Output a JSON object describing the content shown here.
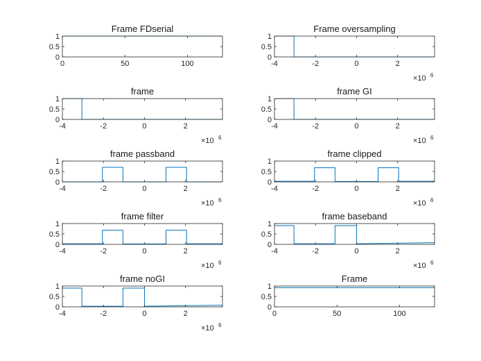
{
  "chart_data": [
    {
      "type": "line",
      "title": "Frame FDserial",
      "xlim": [
        0,
        128
      ],
      "ylim": [
        0,
        1
      ],
      "xticks": [
        0,
        50,
        100
      ],
      "xtick_labels": [
        "0",
        "50",
        "100"
      ],
      "yticks": [
        0,
        0.5,
        1
      ],
      "ytick_labels": [
        "0",
        "0.5",
        "1"
      ],
      "x_multiplier": "",
      "series": [
        {
          "color": "#0072bd",
          "x": [
            0,
            128
          ],
          "y": [
            1,
            1
          ]
        }
      ]
    },
    {
      "type": "line",
      "title": "Frame oversampling",
      "xlim": [
        -4000000,
        3800000
      ],
      "ylim": [
        0,
        1
      ],
      "xticks": [
        -4000000,
        -2000000,
        0,
        2000000
      ],
      "xtick_labels": [
        "-4",
        "-2",
        "0",
        "2"
      ],
      "yticks": [
        0,
        0.5,
        1
      ],
      "ytick_labels": [
        "0",
        "0.5",
        "1"
      ],
      "x_multiplier": "×10",
      "x_multiplier_exp": "6",
      "series": [
        {
          "color": "#0072bd",
          "x": [
            -4000000,
            -3050000,
            -3050000,
            3800000
          ],
          "y": [
            1,
            1,
            0,
            0
          ]
        }
      ]
    },
    {
      "type": "line",
      "title": "frame",
      "xlim": [
        -4000000,
        3800000
      ],
      "ylim": [
        0,
        1
      ],
      "xticks": [
        -4000000,
        -2000000,
        0,
        2000000
      ],
      "xtick_labels": [
        "-4",
        "-2",
        "0",
        "2"
      ],
      "yticks": [
        0,
        0.5,
        1
      ],
      "ytick_labels": [
        "0",
        "0.5",
        "1"
      ],
      "x_multiplier": "×10",
      "x_multiplier_exp": "6",
      "series": [
        {
          "color": "#0072bd",
          "x": [
            -4000000,
            -3050000,
            -3050000,
            3800000
          ],
          "y": [
            1,
            1,
            0,
            0
          ]
        }
      ]
    },
    {
      "type": "line",
      "title": "frame GI",
      "xlim": [
        -4000000,
        3800000
      ],
      "ylim": [
        0,
        1
      ],
      "xticks": [
        -4000000,
        -2000000,
        0,
        2000000
      ],
      "xtick_labels": [
        "-4",
        "-2",
        "0",
        "2"
      ],
      "yticks": [
        0,
        0.5,
        1
      ],
      "ytick_labels": [
        "0",
        "0.5",
        "1"
      ],
      "x_multiplier": "×10",
      "x_multiplier_exp": "6",
      "series": [
        {
          "color": "#0072bd",
          "x": [
            -4000000,
            -3050000,
            -3050000,
            3800000
          ],
          "y": [
            1,
            1,
            0,
            0
          ]
        }
      ]
    },
    {
      "type": "line",
      "title": "frame passband",
      "xlim": [
        -4000000,
        3800000
      ],
      "ylim": [
        0,
        1
      ],
      "xticks": [
        -4000000,
        -2000000,
        0,
        2000000
      ],
      "xtick_labels": [
        "-4",
        "-2",
        "0",
        "2"
      ],
      "yticks": [
        0,
        0.5,
        1
      ],
      "ytick_labels": [
        "0",
        "0.5",
        "1"
      ],
      "x_multiplier": "×10",
      "x_multiplier_exp": "6",
      "series": [
        {
          "color": "#0072bd",
          "x": [
            -4000000,
            -2050000,
            -2050000,
            -1050000,
            -1050000,
            1050000,
            1050000,
            2050000,
            2050000,
            3800000
          ],
          "y": [
            0,
            0,
            0.7,
            0.7,
            0,
            0,
            0.7,
            0.7,
            0,
            0
          ]
        }
      ]
    },
    {
      "type": "line",
      "title": "frame clipped",
      "xlim": [
        -4000000,
        3800000
      ],
      "ylim": [
        0,
        1
      ],
      "xticks": [
        -4000000,
        -2000000,
        0,
        2000000
      ],
      "xtick_labels": [
        "-4",
        "-2",
        "0",
        "2"
      ],
      "yticks": [
        0,
        0.5,
        1
      ],
      "ytick_labels": [
        "0",
        "0.5",
        "1"
      ],
      "x_multiplier": "×10",
      "x_multiplier_exp": "6",
      "series": [
        {
          "color": "#0072bd",
          "x": [
            -4000000,
            -2050000,
            -2050000,
            -1050000,
            -1050000,
            1050000,
            1050000,
            2050000,
            2050000,
            3800000
          ],
          "y": [
            0.03,
            0.03,
            0.68,
            0.68,
            0.02,
            0.02,
            0.68,
            0.68,
            0.03,
            0.03
          ]
        }
      ]
    },
    {
      "type": "line",
      "title": "frame filter",
      "xlim": [
        -4000000,
        3800000
      ],
      "ylim": [
        0,
        1
      ],
      "xticks": [
        -4000000,
        -2000000,
        0,
        2000000
      ],
      "xtick_labels": [
        "-4",
        "-2",
        "0",
        "2"
      ],
      "yticks": [
        0,
        0.5,
        1
      ],
      "ytick_labels": [
        "0",
        "0.5",
        "1"
      ],
      "x_multiplier": "×10",
      "x_multiplier_exp": "6",
      "series": [
        {
          "color": "#0072bd",
          "x": [
            -4000000,
            -2050000,
            -2050000,
            -1050000,
            -1050000,
            1050000,
            1050000,
            2050000,
            2050000,
            3800000
          ],
          "y": [
            0.03,
            0.03,
            0.68,
            0.68,
            0.02,
            0.02,
            0.68,
            0.68,
            0.03,
            0.03
          ]
        }
      ]
    },
    {
      "type": "line",
      "title": "frame baseband",
      "xlim": [
        -4000000,
        3800000
      ],
      "ylim": [
        0,
        1
      ],
      "xticks": [
        -4000000,
        -2000000,
        0,
        2000000
      ],
      "xtick_labels": [
        "-4",
        "-2",
        "0",
        "2"
      ],
      "yticks": [
        0,
        0.5,
        1
      ],
      "ytick_labels": [
        "0",
        "0.5",
        "1"
      ],
      "x_multiplier": "×10",
      "x_multiplier_exp": "6",
      "series": [
        {
          "color": "#0072bd",
          "x": [
            -4000000,
            -3050000,
            -3050000,
            -1050000,
            -1050000,
            0,
            0,
            3800000
          ],
          "y": [
            0.9,
            0.9,
            0.03,
            0.03,
            0.9,
            0.9,
            0.03,
            0.08
          ]
        }
      ]
    },
    {
      "type": "line",
      "title": "frame noGI",
      "xlim": [
        -4000000,
        3800000
      ],
      "ylim": [
        0,
        1
      ],
      "xticks": [
        -4000000,
        -2000000,
        0,
        2000000
      ],
      "xtick_labels": [
        "-4",
        "-2",
        "0",
        "2"
      ],
      "yticks": [
        0,
        0.5,
        1
      ],
      "ytick_labels": [
        "0",
        "0.5",
        "1"
      ],
      "x_multiplier": "×10",
      "x_multiplier_exp": "6",
      "series": [
        {
          "color": "#0072bd",
          "x": [
            -4000000,
            -3050000,
            -3050000,
            -1050000,
            -1050000,
            0,
            0,
            3800000
          ],
          "y": [
            0.9,
            0.9,
            0.03,
            0.03,
            0.9,
            0.9,
            0.03,
            0.08
          ]
        }
      ]
    },
    {
      "type": "line",
      "title": "Frame",
      "xlim": [
        0,
        128
      ],
      "ylim": [
        0,
        1
      ],
      "xticks": [
        0,
        50,
        100
      ],
      "xtick_labels": [
        "0",
        "50",
        "100"
      ],
      "yticks": [
        0,
        0.5,
        1
      ],
      "ytick_labels": [
        "0",
        "0.5",
        "1"
      ],
      "x_multiplier": "",
      "series": [
        {
          "color": "#0072bd",
          "x": [
            0,
            128
          ],
          "y": [
            0.92,
            0.92
          ]
        }
      ]
    }
  ]
}
